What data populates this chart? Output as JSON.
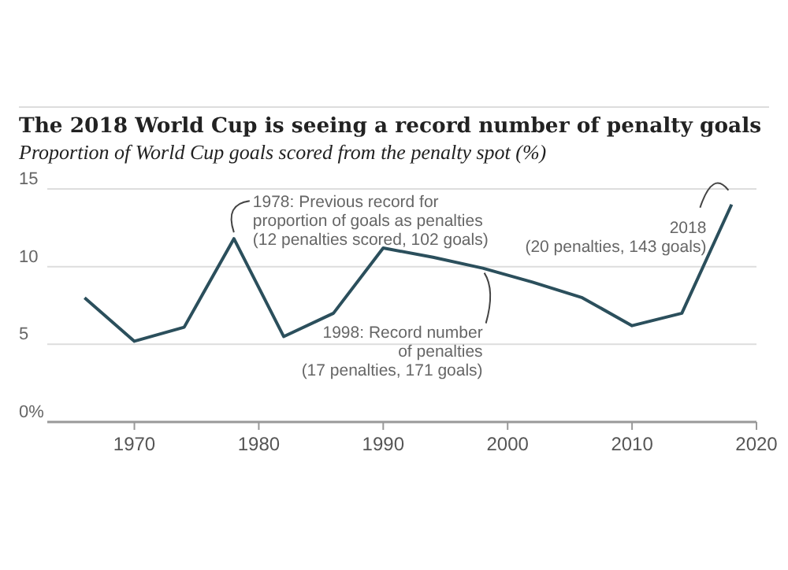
{
  "chart_data": {
    "type": "line",
    "title": "The 2018 World Cup is seeing a record number of penalty goals",
    "subtitle": "Proportion of World Cup goals scored from the penalty spot (%)",
    "x": [
      1966,
      1970,
      1974,
      1978,
      1982,
      1986,
      1990,
      1994,
      1998,
      2002,
      2006,
      2010,
      2014,
      2018
    ],
    "series": [
      {
        "color": "#2b4f5c",
        "values": [
          8.0,
          5.2,
          6.1,
          11.8,
          5.5,
          7.0,
          11.2,
          10.6,
          9.9,
          9.0,
          8.0,
          6.2,
          7.0,
          14.0
        ]
      }
    ],
    "xlim": [
      1963,
      2020
    ],
    "xticks": [
      1970,
      1980,
      1990,
      2000,
      2010,
      2020
    ],
    "ylim": [
      0,
      15
    ],
    "yticks": [
      {
        "value": 0,
        "label": "0%"
      },
      5,
      10,
      15
    ],
    "grid": "y",
    "marker": "none",
    "line_style": "solid",
    "annotations": [
      {
        "text": "1978: Previous record for\nproportion of goals as penalties\n(12 penalties scored, 102 goals)",
        "x": 1978,
        "y": 11.8
      },
      {
        "text": "1998: Record number\nof penalties\n(17 penalties, 171 goals)",
        "x": 1998,
        "y": 9.9
      },
      {
        "text": "2018\n(20 penalties, 143 goals)",
        "x": 2018,
        "y": 14.0
      }
    ]
  }
}
